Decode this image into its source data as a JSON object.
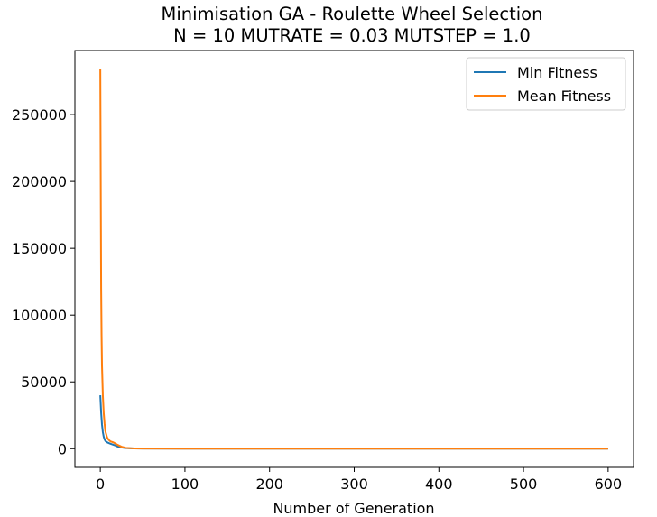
{
  "chart_data": {
    "type": "line",
    "title_line1": "Minimisation GA - Roulette Wheel Selection",
    "title_line2": "N = 10 MUTRATE = 0.03 MUTSTEP = 1.0",
    "xlabel": "Number of Generation",
    "ylabel": "",
    "xlim": [
      -30,
      630
    ],
    "ylim": [
      -14000,
      298000
    ],
    "xticks": [
      0,
      100,
      200,
      300,
      400,
      500,
      600
    ],
    "yticks": [
      0,
      50000,
      100000,
      150000,
      200000,
      250000
    ],
    "grid": false,
    "legend_position": "top-right",
    "series": [
      {
        "name": "Min Fitness",
        "color": "#1f77b4",
        "x": [
          0,
          1,
          2,
          3,
          4,
          5,
          6,
          8,
          10,
          12,
          15,
          18,
          20,
          25,
          30,
          40,
          50,
          100,
          200,
          300,
          400,
          500,
          600
        ],
        "y": [
          40000,
          27000,
          18000,
          12500,
          9000,
          7000,
          5800,
          4800,
          4200,
          3700,
          3000,
          2300,
          1700,
          900,
          400,
          150,
          60,
          20,
          10,
          5,
          3,
          2,
          1
        ]
      },
      {
        "name": "Mean Fitness",
        "color": "#ff7f0e",
        "x": [
          0,
          0.5,
          1,
          1.5,
          2,
          3,
          4,
          5,
          6,
          8,
          10,
          12,
          15,
          18,
          20,
          25,
          30,
          40,
          50,
          100,
          200,
          300,
          400,
          500,
          600
        ],
        "y": [
          284000,
          200000,
          120000,
          85000,
          62000,
          40000,
          27000,
          19000,
          13000,
          8500,
          6500,
          5500,
          4800,
          3800,
          3000,
          1500,
          600,
          200,
          80,
          30,
          15,
          8,
          5,
          3,
          2
        ]
      }
    ]
  }
}
